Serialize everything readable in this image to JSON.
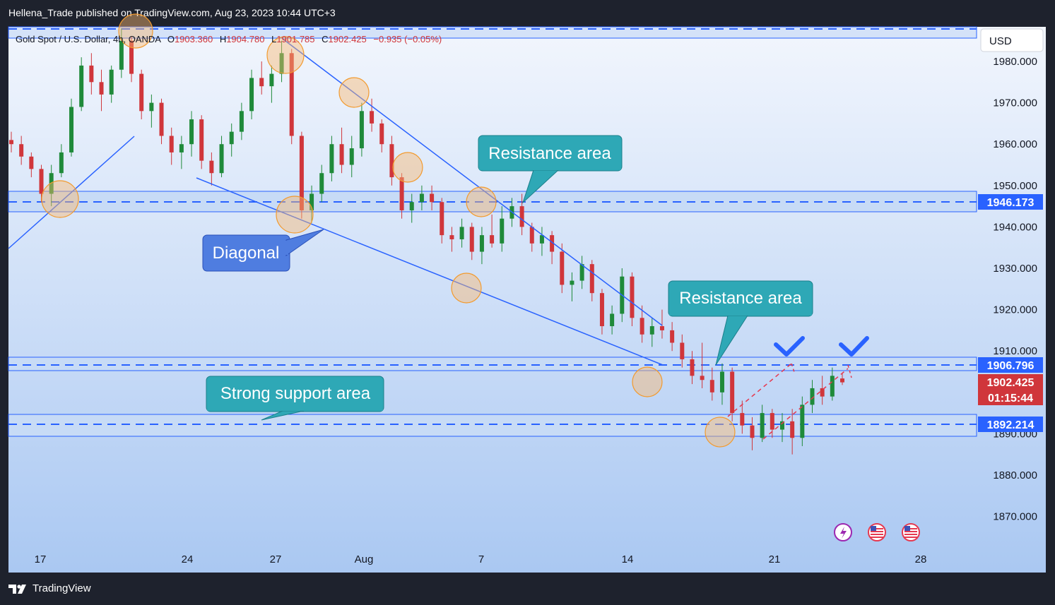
{
  "header": {
    "published_text": "Hellena_Trade published on TradingView.com, Aug 23, 2023 10:44 UTC+3"
  },
  "footer": {
    "brand": "TradingView"
  },
  "legend": {
    "symbol": "Gold Spot / U.S. Dollar, 4h, OANDA",
    "o_label": "O",
    "o": "1903.360",
    "h_label": "H",
    "h": "1904.780",
    "l_label": "L",
    "l": "1901.785",
    "c_label": "C",
    "c": "1902.425",
    "change": "−0.935 (−0.05%)"
  },
  "price_axis": {
    "currency": "USD",
    "ticks": [
      "1980.000",
      "1970.000",
      "1960.000",
      "1950.000",
      "1940.000",
      "1930.000",
      "1920.000",
      "1910.000",
      "1890.000",
      "1880.000",
      "1870.000"
    ],
    "badges": [
      {
        "label": "1946.173",
        "color": "#2962ff"
      },
      {
        "label": "1906.796",
        "color": "#2962ff"
      },
      {
        "label": "1902.425",
        "color": "#d0363b"
      },
      {
        "label": "01:15:44",
        "color": "#d0363b"
      },
      {
        "label": "1892.214",
        "color": "#2962ff"
      }
    ]
  },
  "time_axis": {
    "labels": [
      "17",
      "24",
      "27",
      "Aug",
      "7",
      "14",
      "21",
      "28"
    ]
  },
  "annotations": {
    "resistance_top": "Resistance area",
    "resistance_bottom": "Resistance area",
    "diagonal": "Diagonal",
    "support": "Strong support area"
  },
  "chart_data": {
    "type": "candlestick",
    "symbol": "Gold Spot / U.S. Dollar",
    "timeframe": "4h",
    "ylim": [
      1863,
      1990
    ],
    "x_ticks": [
      "17",
      "24",
      "27",
      "Aug",
      "7",
      "14",
      "21",
      "28"
    ],
    "horizontal_levels": [
      1946.173,
      1906.796,
      1892.214
    ],
    "zones": [
      {
        "label": "Resistance area",
        "from": 1943.5,
        "to": 1948.5
      },
      {
        "label": "Resistance area",
        "from": 1905.0,
        "to": 1908.5
      },
      {
        "label": "Strong support area",
        "from": 1889.5,
        "to": 1895.0
      }
    ],
    "last_close": 1902.425,
    "candle_ohlc_sequence": [
      [
        1961,
        1963,
        1958,
        1960
      ],
      [
        1960,
        1962,
        1955,
        1957
      ],
      [
        1957,
        1958,
        1952,
        1954
      ],
      [
        1954,
        1955,
        1946,
        1948
      ],
      [
        1948,
        1955,
        1945,
        1953
      ],
      [
        1953,
        1960,
        1952,
        1958
      ],
      [
        1958,
        1971,
        1957,
        1969
      ],
      [
        1969,
        1981,
        1968,
        1979
      ],
      [
        1979,
        1982,
        1972,
        1975
      ],
      [
        1975,
        1978,
        1968,
        1972
      ],
      [
        1972,
        1979,
        1970,
        1978
      ],
      [
        1978,
        1988,
        1976,
        1985
      ],
      [
        1985,
        1986,
        1975,
        1977
      ],
      [
        1977,
        1978,
        1966,
        1968
      ],
      [
        1968,
        1972,
        1964,
        1970
      ],
      [
        1970,
        1971,
        1960,
        1962
      ],
      [
        1962,
        1964,
        1955,
        1958
      ],
      [
        1958,
        1962,
        1954,
        1960
      ],
      [
        1960,
        1968,
        1957,
        1966
      ],
      [
        1966,
        1967,
        1954,
        1956
      ],
      [
        1956,
        1958,
        1950,
        1953
      ],
      [
        1953,
        1962,
        1952,
        1960
      ],
      [
        1960,
        1965,
        1957,
        1963
      ],
      [
        1963,
        1970,
        1961,
        1968
      ],
      [
        1968,
        1978,
        1966,
        1976
      ],
      [
        1976,
        1980,
        1972,
        1974
      ],
      [
        1974,
        1979,
        1970,
        1977
      ],
      [
        1977,
        1985,
        1975,
        1982
      ],
      [
        1982,
        1983,
        1960,
        1962
      ],
      [
        1962,
        1963,
        1942,
        1944
      ],
      [
        1944,
        1950,
        1941,
        1948
      ],
      [
        1948,
        1955,
        1946,
        1953
      ],
      [
        1953,
        1962,
        1951,
        1960
      ],
      [
        1960,
        1964,
        1953,
        1955
      ],
      [
        1955,
        1962,
        1952,
        1959
      ],
      [
        1959,
        1970,
        1957,
        1968
      ],
      [
        1968,
        1971,
        1963,
        1965
      ],
      [
        1965,
        1966,
        1958,
        1960
      ],
      [
        1960,
        1962,
        1950,
        1952
      ],
      [
        1952,
        1953,
        1942,
        1944
      ],
      [
        1944,
        1948,
        1941,
        1946
      ],
      [
        1946,
        1950,
        1944,
        1948
      ],
      [
        1948,
        1950,
        1944,
        1946
      ],
      [
        1946,
        1947,
        1936,
        1938
      ],
      [
        1938,
        1940,
        1934,
        1937
      ],
      [
        1937,
        1942,
        1935,
        1940
      ],
      [
        1940,
        1941,
        1932,
        1934
      ],
      [
        1934,
        1940,
        1931,
        1938
      ],
      [
        1938,
        1943,
        1935,
        1936
      ],
      [
        1936,
        1945,
        1934,
        1942
      ],
      [
        1942,
        1947,
        1940,
        1945
      ],
      [
        1945,
        1948,
        1938,
        1940
      ],
      [
        1940,
        1941,
        1934,
        1936
      ],
      [
        1936,
        1940,
        1933,
        1938
      ],
      [
        1938,
        1939,
        1931,
        1934
      ],
      [
        1934,
        1936,
        1924,
        1926
      ],
      [
        1926,
        1929,
        1922,
        1927
      ],
      [
        1927,
        1933,
        1925,
        1931
      ],
      [
        1931,
        1932,
        1922,
        1924
      ],
      [
        1924,
        1925,
        1914,
        1916
      ],
      [
        1916,
        1921,
        1914,
        1919
      ],
      [
        1919,
        1930,
        1917,
        1928
      ],
      [
        1928,
        1929,
        1916,
        1918
      ],
      [
        1918,
        1921,
        1912,
        1914
      ],
      [
        1914,
        1918,
        1911,
        1916
      ],
      [
        1916,
        1920,
        1913,
        1915
      ],
      [
        1915,
        1917,
        1910,
        1912
      ],
      [
        1912,
        1914,
        1906,
        1908
      ],
      [
        1908,
        1910,
        1902,
        1904
      ],
      [
        1904,
        1912,
        1901,
        1903
      ],
      [
        1903,
        1906,
        1898,
        1900
      ],
      [
        1900,
        1907,
        1897,
        1905
      ],
      [
        1905,
        1906,
        1893,
        1895
      ],
      [
        1895,
        1898,
        1890,
        1892
      ],
      [
        1892,
        1894,
        1886,
        1889
      ],
      [
        1889,
        1897,
        1888,
        1895
      ],
      [
        1895,
        1896,
        1889,
        1891
      ],
      [
        1891,
        1895,
        1888,
        1893
      ],
      [
        1893,
        1896,
        1885,
        1889
      ],
      [
        1889,
        1899,
        1887,
        1897
      ],
      [
        1897,
        1903,
        1895,
        1901
      ],
      [
        1901,
        1904,
        1897,
        1899
      ],
      [
        1899,
        1906,
        1898,
        1904
      ],
      [
        1903.36,
        1904.78,
        1901.785,
        1902.425
      ]
    ]
  }
}
